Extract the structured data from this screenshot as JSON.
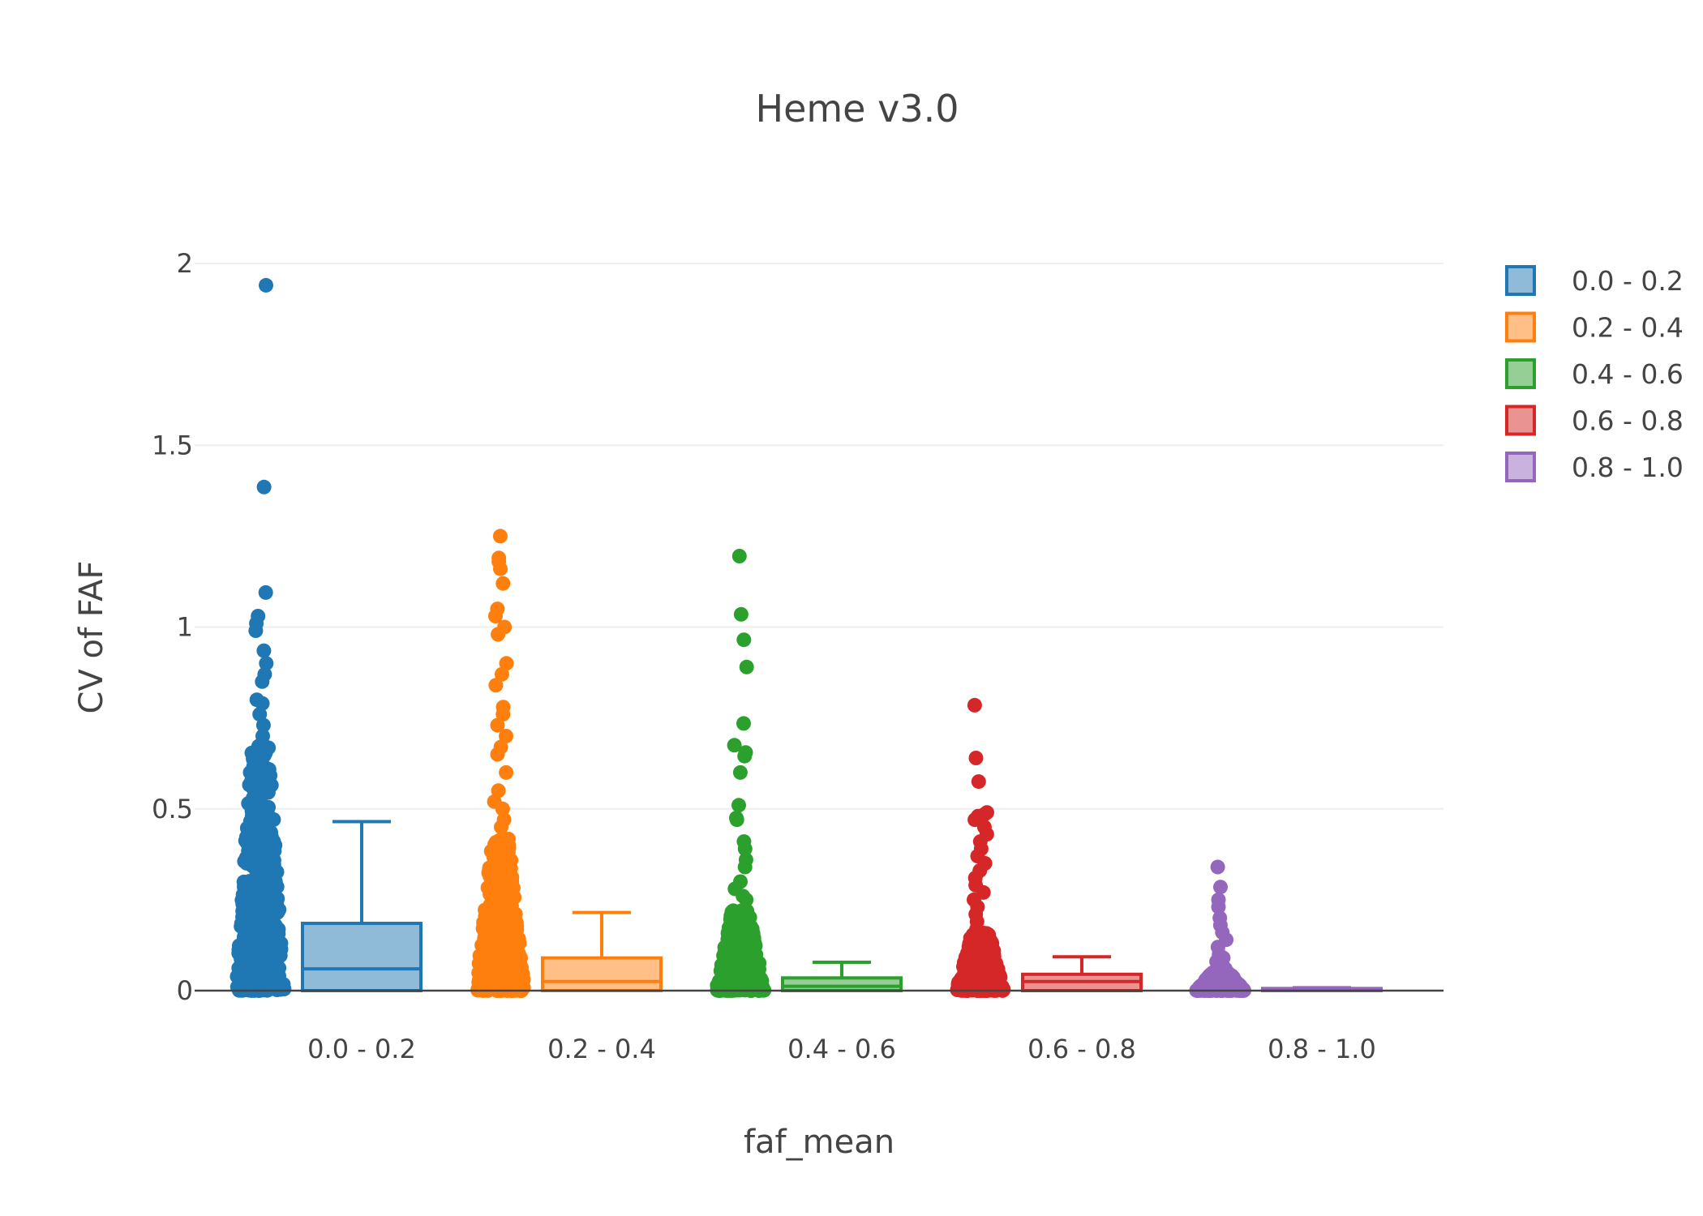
{
  "chart_data": {
    "type": "box",
    "title": "Heme v3.0",
    "xlabel": "faf_mean",
    "ylabel": "CV of FAF",
    "ylim": [
      -0.03,
      2.2
    ],
    "yticks": [
      {
        "value": 0,
        "label": "0"
      },
      {
        "value": 0.5,
        "label": "0.5"
      },
      {
        "value": 1,
        "label": "1"
      },
      {
        "value": 1.5,
        "label": "1.5"
      },
      {
        "value": 2,
        "label": "2"
      }
    ],
    "categories": [
      "0.0 - 0.2",
      "0.2 - 0.4",
      "0.4 - 0.6",
      "0.6 - 0.8",
      "0.8 - 1.0"
    ],
    "grid": true,
    "legend_position": "right",
    "series": [
      {
        "name": "0.0 - 0.2",
        "color": "#1f77b4",
        "fill": "#8fbbd9",
        "box": {
          "min": 0,
          "q1": 0.0,
          "median": 0.06,
          "q3": 0.185,
          "upper_whisker": 0.465
        },
        "dense_range": [
          0,
          0.68
        ],
        "outliers": [
          1.94,
          1.385,
          1.095,
          1.03,
          1.01,
          0.99,
          0.935,
          0.9,
          0.87,
          0.85,
          0.8,
          0.79,
          0.76,
          0.73,
          0.7
        ]
      },
      {
        "name": "0.2 - 0.4",
        "color": "#ff7f0e",
        "fill": "#ffbf87",
        "box": {
          "min": 0,
          "q1": 0.0,
          "median": 0.025,
          "q3": 0.09,
          "upper_whisker": 0.215
        },
        "dense_range": [
          0,
          0.42
        ],
        "outliers": [
          1.25,
          1.19,
          1.18,
          1.16,
          1.12,
          1.05,
          1.03,
          1.0,
          0.98,
          0.9,
          0.87,
          0.84,
          0.78,
          0.76,
          0.73,
          0.7,
          0.67,
          0.65,
          0.6,
          0.55,
          0.52,
          0.5,
          0.47,
          0.45
        ]
      },
      {
        "name": "0.4 - 0.6",
        "color": "#2ca02c",
        "fill": "#95cf95",
        "box": {
          "min": 0,
          "q1": 0.0,
          "median": 0.012,
          "q3": 0.035,
          "upper_whisker": 0.078
        },
        "dense_range": [
          0,
          0.22
        ],
        "outliers": [
          1.195,
          1.035,
          0.965,
          0.89,
          0.735,
          0.675,
          0.655,
          0.645,
          0.6,
          0.51,
          0.475,
          0.47,
          0.41,
          0.39,
          0.36,
          0.34,
          0.3,
          0.28,
          0.26,
          0.25
        ]
      },
      {
        "name": "0.6 - 0.8",
        "color": "#d62728",
        "fill": "#ea9393",
        "box": {
          "min": 0,
          "q1": 0.0,
          "median": 0.025,
          "q3": 0.045,
          "upper_whisker": 0.093
        },
        "dense_range": [
          0,
          0.16
        ],
        "outliers": [
          0.785,
          0.64,
          0.575,
          0.49,
          0.485,
          0.48,
          0.47,
          0.45,
          0.43,
          0.41,
          0.39,
          0.37,
          0.35,
          0.33,
          0.31,
          0.29,
          0.27,
          0.25,
          0.23,
          0.21,
          0.19,
          0.17
        ]
      },
      {
        "name": "0.8 - 1.0",
        "color": "#9467bd",
        "fill": "#c9b3de",
        "box": {
          "min": 0,
          "q1": 0.0,
          "median": 0.003,
          "q3": 0.006,
          "upper_whisker": 0.008
        },
        "dense_range": [
          0,
          0.05
        ],
        "outliers": [
          0.34,
          0.285,
          0.25,
          0.23,
          0.2,
          0.18,
          0.16,
          0.14,
          0.12,
          0.1,
          0.09,
          0.08,
          0.07,
          0.06
        ]
      }
    ]
  }
}
